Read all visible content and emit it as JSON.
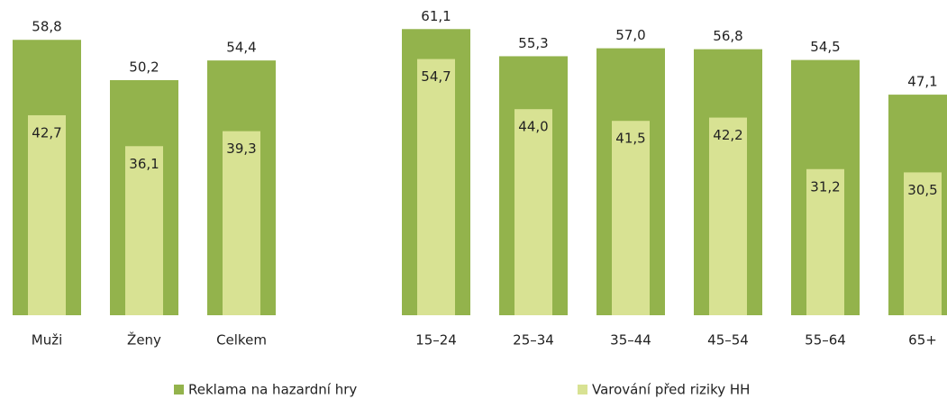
{
  "chart_data": {
    "type": "bar",
    "categories": [
      "Muži",
      "Ženy",
      "Celkem",
      null,
      "15–24",
      "25–34",
      "35–44",
      "45–54",
      "55–64",
      "65+"
    ],
    "series": [
      {
        "name": "Reklama na hazardní hry",
        "color": "#93b34c",
        "values": [
          58.8,
          50.2,
          54.4,
          null,
          61.1,
          55.3,
          57.0,
          56.8,
          54.5,
          47.1
        ],
        "value_labels": [
          "58,8",
          "50,2",
          "54,4",
          null,
          "61,1",
          "55,3",
          "57,0",
          "56,8",
          "54,5",
          "47,1"
        ]
      },
      {
        "name": "Varování před riziky HH",
        "color": "#d8e293",
        "values": [
          42.7,
          36.1,
          39.3,
          null,
          54.7,
          44.0,
          41.5,
          42.2,
          31.2,
          30.5
        ],
        "value_labels": [
          "42,7",
          "36,1",
          "39,3",
          null,
          "54,7",
          "44,0",
          "41,5",
          "42,2",
          "31,2",
          "30,5"
        ]
      }
    ]
  }
}
